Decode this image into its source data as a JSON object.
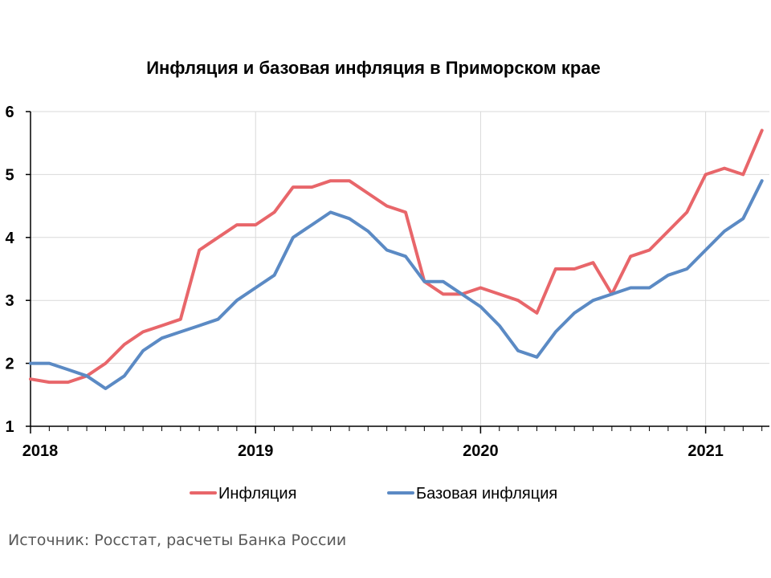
{
  "chart_data": {
    "type": "line",
    "title": "Инфляция и базовая инфляция в Приморском крае",
    "xlabel": "",
    "ylabel": "",
    "ylim": [
      1,
      6
    ],
    "yticks": [
      "1",
      "2",
      "3",
      "4",
      "5",
      "6"
    ],
    "xticks": [
      {
        "label": "2018",
        "x": 0
      },
      {
        "label": "2019",
        "x": 12
      },
      {
        "label": "2020",
        "x": 24
      },
      {
        "label": "2021",
        "x": 36
      }
    ],
    "x_unit": "months since January 2018",
    "grid": true,
    "legend_position": "bottom",
    "series": [
      {
        "name": "Инфляция",
        "color": "#E8666A",
        "values": [
          1.75,
          1.7,
          1.7,
          1.8,
          2.0,
          2.3,
          2.5,
          2.6,
          2.7,
          3.8,
          4.0,
          4.2,
          4.2,
          4.4,
          4.8,
          4.8,
          4.9,
          4.9,
          4.7,
          4.5,
          4.4,
          3.3,
          3.1,
          3.1,
          3.2,
          3.1,
          3.0,
          2.8,
          3.5,
          3.5,
          3.6,
          3.1,
          3.7,
          3.8,
          4.1,
          4.4,
          5.0,
          5.1,
          5.0,
          5.7
        ]
      },
      {
        "name": "Базовая инфляция",
        "color": "#5B8AC4",
        "values": [
          2.0,
          2.0,
          1.9,
          1.8,
          1.6,
          1.8,
          2.2,
          2.4,
          2.5,
          2.6,
          2.7,
          3.0,
          3.2,
          3.4,
          4.0,
          4.2,
          4.4,
          4.3,
          4.1,
          3.8,
          3.7,
          3.3,
          3.3,
          3.1,
          2.9,
          2.6,
          2.2,
          2.1,
          2.5,
          2.8,
          3.0,
          3.1,
          3.2,
          3.2,
          3.4,
          3.5,
          3.8,
          4.1,
          4.3,
          4.9
        ]
      }
    ]
  },
  "source_text": "Источник: Росстат, расчеты Банка России"
}
